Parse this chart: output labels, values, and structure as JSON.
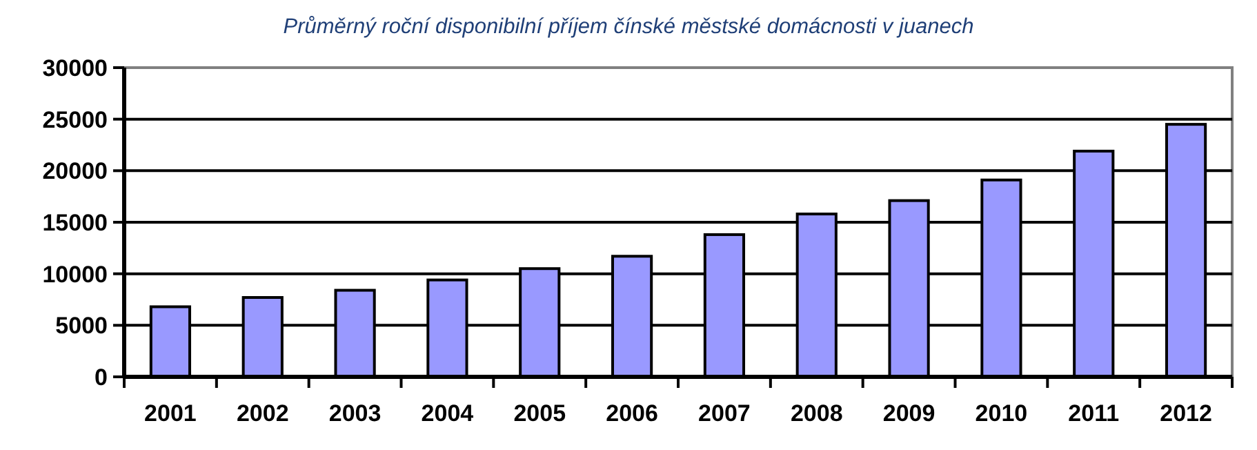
{
  "chart_data": {
    "type": "bar",
    "title": "Průměrný roční disponibilní příjem čínské městské domácnosti v juanech",
    "categories": [
      "2001",
      "2002",
      "2003",
      "2004",
      "2005",
      "2006",
      "2007",
      "2008",
      "2009",
      "2010",
      "2011",
      "2012"
    ],
    "values": [
      6800,
      7700,
      8400,
      9400,
      10500,
      11700,
      13800,
      15800,
      17100,
      19100,
      21900,
      24500
    ],
    "color": "#9999ff",
    "ylim": [
      0,
      30000
    ],
    "yticks": [
      0,
      5000,
      10000,
      15000,
      20000,
      25000,
      30000
    ],
    "grid": "y"
  }
}
